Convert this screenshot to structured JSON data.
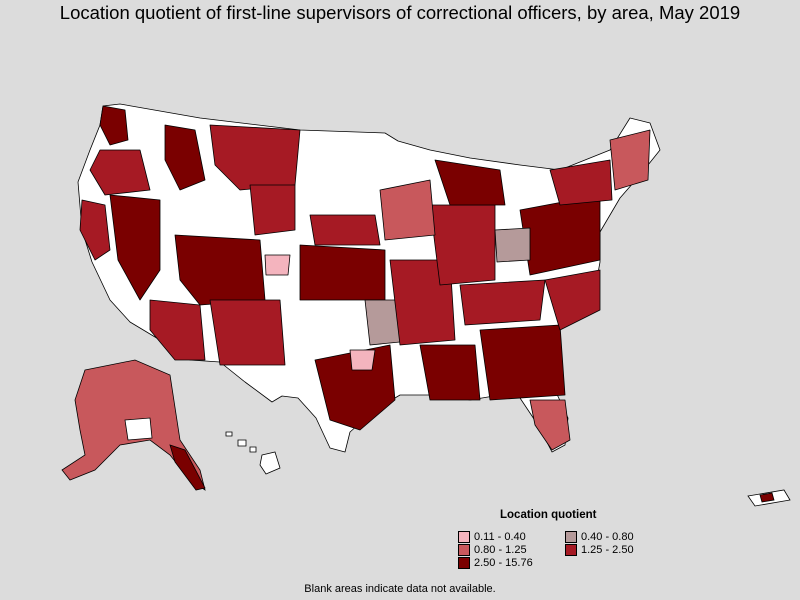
{
  "title": "Location quotient of first-line supervisors of correctional officers, by area, May 2019",
  "legend": {
    "title": "Location quotient",
    "items": [
      {
        "label": "0.11 - 0.40",
        "color": "#f4b4be"
      },
      {
        "label": "0.40 - 0.80",
        "color": "#b59a9a"
      },
      {
        "label": "0.80 - 1.25",
        "color": "#c8585c"
      },
      {
        "label": "1.25 - 2.50",
        "color": "#a61a24"
      },
      {
        "label": "2.50 - 15.76",
        "color": "#7a0000"
      }
    ]
  },
  "note": "Blank areas indicate data not available."
}
